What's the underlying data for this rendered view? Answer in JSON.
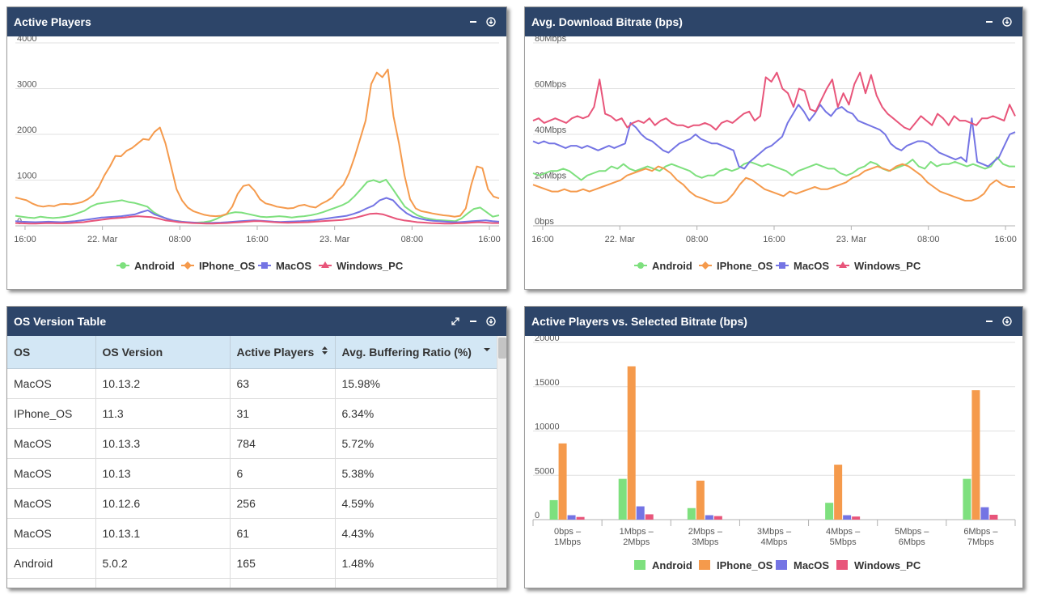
{
  "panels": {
    "active_players": {
      "title": "Active Players"
    },
    "bitrate": {
      "title": "Avg. Download Bitrate (bps)"
    },
    "table": {
      "title": "OS Version Table"
    },
    "vs_bitrate": {
      "title": "Active Players vs. Selected Bitrate (bps)"
    }
  },
  "colors": {
    "Android": "#7ee07e",
    "IPhone_OS": "#f59a4c",
    "MacOS": "#7474e4",
    "Windows_PC": "#e8557a",
    "header": "#2d4569"
  },
  "os_table": {
    "columns": [
      "OS",
      "OS Version",
      "Active Players",
      "Avg. Buffering Ratio (%)"
    ],
    "rows": [
      [
        "MacOS",
        "10.13.2",
        "63",
        "15.98%"
      ],
      [
        "IPhone_OS",
        "11.3",
        "31",
        "6.34%"
      ],
      [
        "MacOS",
        "10.13.3",
        "784",
        "5.72%"
      ],
      [
        "MacOS",
        "10.13",
        "6",
        "5.38%"
      ],
      [
        "MacOS",
        "10.12.6",
        "256",
        "4.59%"
      ],
      [
        "MacOS",
        "10.13.1",
        "61",
        "4.43%"
      ],
      [
        "Android",
        "5.0.2",
        "165",
        "1.48%"
      ]
    ]
  },
  "chart_data": [
    {
      "id": "active_players",
      "type": "line",
      "title": "Active Players",
      "ylim": [
        0,
        4000
      ],
      "yticks": [
        "0",
        "1000",
        "2000",
        "3000",
        "4000"
      ],
      "xlim": [
        0,
        50
      ],
      "xticks": [
        {
          "x": 1,
          "label": "16:00"
        },
        {
          "x": 7,
          "label": "22. Mar"
        },
        {
          "x": 13,
          "label": "08:00"
        },
        {
          "x": 19,
          "label": "16:00"
        },
        {
          "x": 25,
          "label": "23. Mar"
        },
        {
          "x": 31,
          "label": "08:00"
        },
        {
          "x": 37,
          "label": "16:00"
        }
      ],
      "series": [
        {
          "name": "Android",
          "values": [
            220,
            200,
            180,
            170,
            200,
            180,
            170,
            180,
            200,
            230,
            280,
            330,
            420,
            480,
            500,
            520,
            540,
            560,
            520,
            500,
            460,
            420,
            300,
            220,
            160,
            120,
            100,
            80,
            70,
            70,
            80,
            100,
            150,
            220,
            270,
            300,
            290,
            260,
            230,
            200,
            190,
            200,
            210,
            200,
            180,
            200,
            210,
            230,
            260,
            300,
            350,
            400,
            450,
            520,
            650,
            800,
            960,
            1000,
            950,
            1010,
            820,
            620,
            420,
            320,
            230,
            180,
            150,
            130,
            120,
            110,
            100,
            160,
            270,
            370,
            400,
            300,
            200,
            230
          ]
        },
        {
          "name": "IPhone_OS",
          "values": [
            620,
            590,
            560,
            490,
            440,
            420,
            440,
            430,
            470,
            480,
            470,
            490,
            520,
            580,
            670,
            850,
            1100,
            1300,
            1530,
            1520,
            1640,
            1700,
            1800,
            1900,
            1880,
            2050,
            2150,
            1800,
            1300,
            800,
            550,
            400,
            320,
            280,
            240,
            220,
            210,
            220,
            260,
            420,
            700,
            870,
            900,
            770,
            580,
            490,
            460,
            420,
            400,
            380,
            390,
            440,
            460,
            420,
            400,
            480,
            540,
            620,
            780,
            900,
            1150,
            1500,
            1900,
            2300,
            3100,
            3350,
            3250,
            3420,
            2400,
            1800,
            1100,
            580,
            380,
            320,
            300,
            270,
            250,
            230,
            220,
            200,
            220,
            380,
            900,
            1300,
            1260,
            800,
            640,
            600
          ]
        },
        {
          "name": "MacOS",
          "values": [
            100,
            90,
            85,
            80,
            85,
            90,
            85,
            80,
            90,
            100,
            120,
            140,
            160,
            180,
            190,
            200,
            210,
            230,
            250,
            300,
            340,
            250,
            200,
            150,
            110,
            90,
            80,
            70,
            60,
            60,
            65,
            70,
            80,
            90,
            100,
            110,
            120,
            110,
            100,
            90,
            85,
            90,
            95,
            100,
            110,
            120,
            140,
            160,
            180,
            200,
            220,
            260,
            310,
            380,
            440,
            560,
            610,
            560,
            400,
            280,
            200,
            160,
            130,
            110,
            100,
            90,
            80,
            80,
            90,
            100,
            110,
            120,
            100,
            90
          ]
        },
        {
          "name": "Windows_PC",
          "values": [
            60,
            55,
            50,
            50,
            55,
            60,
            55,
            55,
            60,
            70,
            80,
            100,
            120,
            140,
            160,
            170,
            180,
            200,
            210,
            200,
            190,
            160,
            120,
            100,
            80,
            70,
            60,
            55,
            50,
            50,
            55,
            60,
            70,
            80,
            90,
            100,
            100,
            90,
            80,
            70,
            65,
            70,
            75,
            80,
            90,
            100,
            110,
            120,
            130,
            150,
            180,
            220,
            260,
            270,
            250,
            200,
            150,
            120,
            100,
            80,
            70,
            60,
            55,
            50,
            50,
            55,
            60,
            70,
            80,
            70,
            60,
            60
          ]
        }
      ]
    },
    {
      "id": "bitrate",
      "type": "line",
      "title": "Avg. Download Bitrate (bps)",
      "ylim": [
        0,
        80
      ],
      "yticks": [
        "0bps",
        "20Mbps",
        "40Mbps",
        "60Mbps",
        "80Mbps"
      ],
      "xlim": [
        0,
        50
      ],
      "xticks": [
        {
          "x": 1,
          "label": "16:00"
        },
        {
          "x": 7,
          "label": "22. Mar"
        },
        {
          "x": 13,
          "label": "08:00"
        },
        {
          "x": 19,
          "label": "16:00"
        },
        {
          "x": 25,
          "label": "23. Mar"
        },
        {
          "x": 31,
          "label": "08:00"
        },
        {
          "x": 37,
          "label": "16:00"
        }
      ],
      "series": [
        {
          "name": "Android",
          "values": [
            23,
            22,
            23,
            24,
            24,
            25,
            24,
            22,
            20,
            22,
            23,
            24,
            24,
            26,
            25,
            27,
            25,
            24,
            25,
            26,
            25,
            24,
            26,
            27,
            26,
            25,
            24,
            22,
            21,
            22,
            22,
            24,
            25,
            24,
            25,
            27,
            28,
            27,
            26,
            27,
            26,
            25,
            24,
            22,
            24,
            25,
            26,
            27,
            26,
            25,
            25,
            23,
            22,
            23,
            25,
            26,
            28,
            27,
            25,
            24,
            25,
            26,
            27,
            29,
            26,
            25,
            28,
            26,
            27,
            27,
            28,
            27,
            26,
            27,
            26,
            25,
            26,
            30,
            27,
            26,
            26
          ]
        },
        {
          "name": "IPhone_OS",
          "values": [
            18,
            17,
            16,
            15,
            15,
            16,
            15,
            15,
            16,
            15,
            16,
            17,
            18,
            19,
            20,
            22,
            23,
            24,
            25,
            24,
            26,
            25,
            23,
            20,
            18,
            15,
            13,
            12,
            11,
            10,
            10,
            11,
            14,
            18,
            21,
            20,
            18,
            16,
            15,
            14,
            13,
            15,
            14,
            15,
            16,
            17,
            16,
            16,
            17,
            18,
            19,
            21,
            22,
            24,
            25,
            26,
            25,
            24,
            26,
            27,
            26,
            24,
            22,
            19,
            17,
            15,
            14,
            13,
            12,
            11,
            11,
            12,
            14,
            18,
            20,
            18,
            17,
            17
          ]
        },
        {
          "name": "MacOS",
          "values": [
            37,
            36,
            37,
            36,
            36,
            35,
            34,
            35,
            35,
            34,
            35,
            34,
            33,
            34,
            35,
            34,
            35,
            36,
            45,
            43,
            40,
            38,
            37,
            35,
            33,
            32,
            34,
            36,
            37,
            38,
            40,
            38,
            37,
            36,
            36,
            35,
            34,
            33,
            26,
            25,
            28,
            30,
            32,
            34,
            35,
            37,
            39,
            45,
            49,
            53,
            50,
            46,
            49,
            53,
            50,
            48,
            51,
            52,
            50,
            49,
            46,
            45,
            44,
            43,
            42,
            40,
            36,
            34,
            33,
            35,
            36,
            37,
            37,
            36,
            34,
            32,
            31,
            30,
            29,
            30,
            28,
            47,
            28,
            27,
            26,
            28,
            30,
            35,
            40,
            41
          ]
        },
        {
          "name": "Windows_PC",
          "values": [
            46,
            47,
            45,
            46,
            47,
            46,
            45,
            47,
            48,
            47,
            48,
            52,
            64,
            49,
            48,
            46,
            47,
            43,
            45,
            46,
            45,
            47,
            44,
            46,
            47,
            45,
            44,
            44,
            43,
            44,
            44,
            45,
            44,
            42,
            45,
            46,
            45,
            47,
            49,
            50,
            46,
            48,
            65,
            63,
            67,
            60,
            58,
            52,
            60,
            59,
            51,
            50,
            55,
            60,
            64,
            52,
            58,
            53,
            62,
            67,
            58,
            66,
            57,
            52,
            49,
            47,
            45,
            43,
            42,
            45,
            48,
            46,
            44,
            49,
            47,
            44,
            48,
            46,
            46,
            45,
            44,
            47,
            47,
            48,
            47,
            46,
            53,
            48
          ]
        }
      ]
    },
    {
      "id": "vs_bitrate",
      "type": "bar",
      "title": "Active Players vs. Selected Bitrate (bps)",
      "ylim": [
        0,
        20000
      ],
      "yticks": [
        "0",
        "5000",
        "10000",
        "15000",
        "20000"
      ],
      "categories": [
        [
          "0bps –",
          "1Mbps"
        ],
        [
          "1Mbps –",
          "2Mbps"
        ],
        [
          "2Mbps –",
          "3Mbps"
        ],
        [
          "3Mbps –",
          "4Mbps"
        ],
        [
          "4Mbps –",
          "5Mbps"
        ],
        [
          "5Mbps –",
          "6Mbps"
        ],
        [
          "6Mbps –",
          "7Mbps"
        ]
      ],
      "series": [
        {
          "name": "Android",
          "values": [
            2200,
            4600,
            1300,
            0,
            1900,
            0,
            4600
          ]
        },
        {
          "name": "IPhone_OS",
          "values": [
            8600,
            17300,
            4400,
            0,
            6200,
            0,
            14600
          ]
        },
        {
          "name": "MacOS",
          "values": [
            500,
            1500,
            500,
            0,
            500,
            0,
            1400
          ]
        },
        {
          "name": "Windows_PC",
          "values": [
            300,
            600,
            400,
            0,
            350,
            0,
            550
          ]
        }
      ]
    }
  ]
}
